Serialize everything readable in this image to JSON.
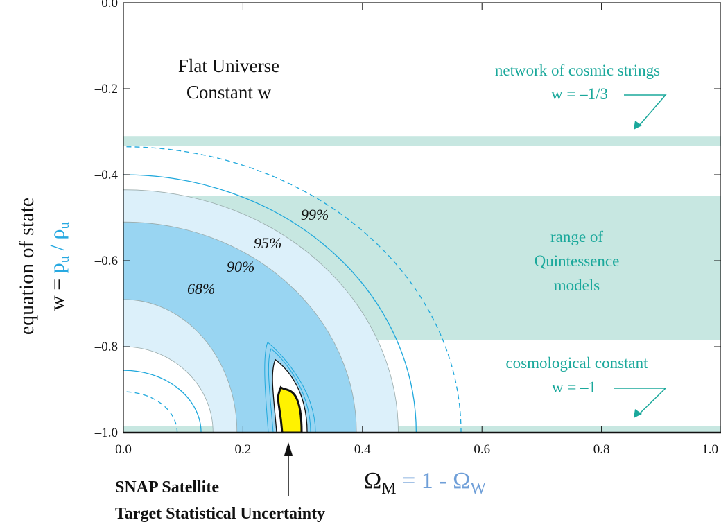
{
  "chart_data": {
    "type": "contour",
    "xlabel": {
      "main": "Ω",
      "sub": "M",
      "rest1": " = 1 - Ω",
      "rest2": "W"
    },
    "ylabel": {
      "line1": "equation of state",
      "line2a": "w = ",
      "p": "p",
      "sub_u1": "u",
      "slash": " / ",
      "rho": "ρ",
      "sub_u2": "u"
    },
    "xlim": [
      0.0,
      1.0
    ],
    "ylim": [
      -1.0,
      0.0
    ],
    "x_ticks": [
      "0.0",
      "0.2",
      "0.4",
      "0.6",
      "0.8",
      "1.0"
    ],
    "y_ticks": [
      "0.0",
      "–0.2",
      "–0.4",
      "–0.6",
      "–0.8",
      "–1.0"
    ],
    "y_tick_values": [
      0.0,
      -0.2,
      -0.4,
      -0.6,
      -0.8,
      -1.0
    ],
    "x_tick_values": [
      0.0,
      0.2,
      0.4,
      0.6,
      0.8,
      1.0
    ],
    "title_lines": [
      "Flat Universe",
      "Constant w"
    ],
    "bands": [
      {
        "label_lines": [
          "network of cosmic strings",
          "w = –1/3"
        ],
        "y_range": [
          -0.3333,
          -0.31
        ]
      },
      {
        "label_lines": [
          "range of",
          "Quintessence",
          "models"
        ],
        "y_range": [
          -0.785,
          -0.45
        ]
      },
      {
        "label_lines": [
          "cosmological constant",
          "w = –1"
        ],
        "y_range": [
          -1.01,
          -0.985
        ]
      }
    ],
    "confidence_regions": [
      {
        "label": "68%",
        "x_at_w_minus1": [
          0.19,
          0.39
        ],
        "x_at_top": 0.0,
        "w_top": -0.51
      },
      {
        "label": "90%",
        "x_at_w_minus1": [
          0.15,
          0.46
        ],
        "x_at_top": 0.0,
        "w_top": -0.435
      },
      {
        "label": "95%",
        "x_at_w_minus1": [
          0.13,
          0.49
        ],
        "x_at_top": 0.0,
        "w_top": -0.4
      },
      {
        "label": "99%",
        "x_at_w_minus1": [
          0.09,
          0.565
        ],
        "x_at_top": 0.0,
        "w_top": -0.335
      }
    ],
    "snap_region": {
      "center": [
        0.275,
        -0.955
      ],
      "x_range_at_bottom": [
        0.265,
        0.3
      ],
      "w_top": -0.9
    },
    "snap_note": [
      "SNAP Satellite",
      "Target Statistical Uncertainty"
    ],
    "colors": {
      "band": "#c7e7e1",
      "teal_text": "#1aa89b",
      "region_68": "#99d5f2",
      "region_90": "#dcf0fa",
      "contour_line": "#1fa8dc",
      "snap_fill": "#fff200",
      "ylabel_accent": "#27a9e1",
      "xlabel_accent": "#6f9fd8",
      "xlabel_sub": "#27a9e1"
    }
  }
}
